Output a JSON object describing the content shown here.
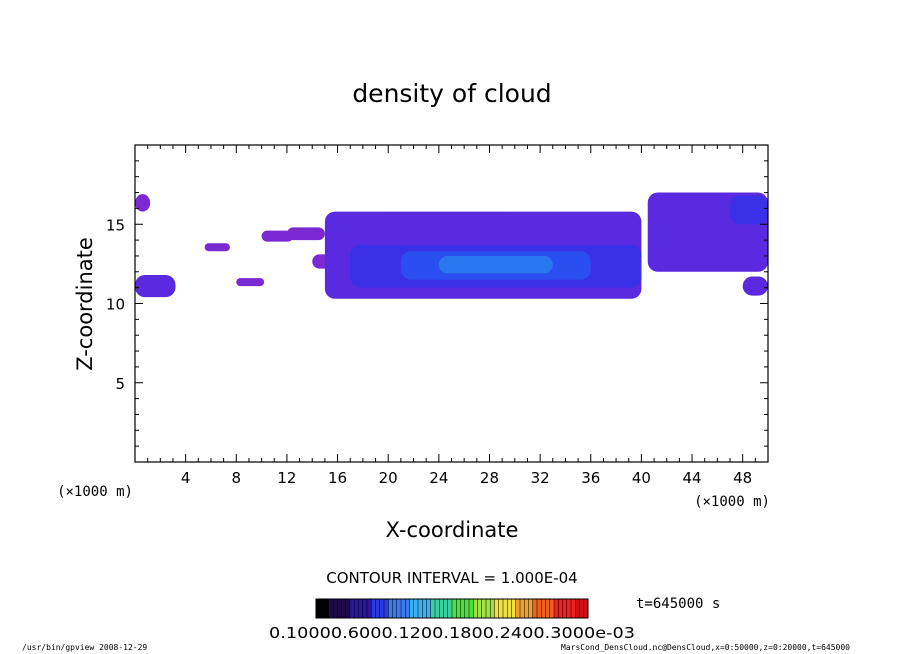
{
  "chart_data": {
    "type": "heatmap",
    "title": "density of cloud",
    "xlabel": "X-coordinate",
    "ylabel": "Z-coordinate",
    "x_unit": "(×1000 m)",
    "y_unit": "(×1000 m)",
    "xlim": [
      0,
      50
    ],
    "ylim": [
      0,
      20
    ],
    "x_ticks": [
      4,
      8,
      12,
      16,
      20,
      24,
      28,
      32,
      36,
      40,
      44,
      48
    ],
    "y_ticks": [
      5,
      10,
      15
    ],
    "grid": false,
    "contour_interval_label": "CONTOUR INTERVAL = 1.000E-04",
    "time_label": "t=645000 s",
    "colorbar_labels": "0.10000.6000.1200.1800.2400.3000e-03",
    "colorbar_colors": [
      "#000000",
      "#1e0a4a",
      "#2a16a0",
      "#2a3ae0",
      "#3c7af0",
      "#3ab0f0",
      "#3ad0a0",
      "#4ee040",
      "#a0e040",
      "#f0e040",
      "#f0a030",
      "#f06020",
      "#f02020",
      "#d01010"
    ],
    "cloud_regions": [
      {
        "x": [
          0,
          1.2
        ],
        "z": [
          15.8,
          16.9
        ],
        "level": 0.6
      },
      {
        "x": [
          0,
          3.2
        ],
        "z": [
          10.4,
          11.8
        ],
        "level": 0.9
      },
      {
        "x": [
          5.5,
          7.5
        ],
        "z": [
          13.3,
          13.8
        ],
        "level": 0.6
      },
      {
        "x": [
          8,
          10.2
        ],
        "z": [
          11.1,
          11.6
        ],
        "level": 0.6
      },
      {
        "x": [
          10,
          12.5
        ],
        "z": [
          13.9,
          14.6
        ],
        "level": 0.6
      },
      {
        "x": [
          12,
          15
        ],
        "z": [
          14.0,
          14.8
        ],
        "level": 0.6
      },
      {
        "x": [
          14,
          16
        ],
        "z": [
          12.2,
          13.1
        ],
        "level": 0.6
      },
      {
        "x": [
          15,
          40
        ],
        "z": [
          10.3,
          15.8
        ],
        "level": 0.8
      },
      {
        "x": [
          17,
          40
        ],
        "z": [
          11.0,
          13.7
        ],
        "level": 1.3
      },
      {
        "x": [
          21,
          36
        ],
        "z": [
          11.5,
          13.3
        ],
        "level": 1.8
      },
      {
        "x": [
          24,
          33
        ],
        "z": [
          11.9,
          13.0
        ],
        "level": 2.3
      },
      {
        "x": [
          40.5,
          50
        ],
        "z": [
          12.0,
          17.0
        ],
        "level": 0.8
      },
      {
        "x": [
          47,
          50
        ],
        "z": [
          15.0,
          16.8
        ],
        "level": 1.1
      },
      {
        "x": [
          48,
          50
        ],
        "z": [
          10.5,
          11.7
        ],
        "level": 0.9
      }
    ]
  },
  "footer": {
    "left": "/usr/bin/gpview  2008-12-29",
    "right": "MarsCond_DensCloud.nc@DensCloud,x=0:50000,z=0:20000,t=645000"
  }
}
